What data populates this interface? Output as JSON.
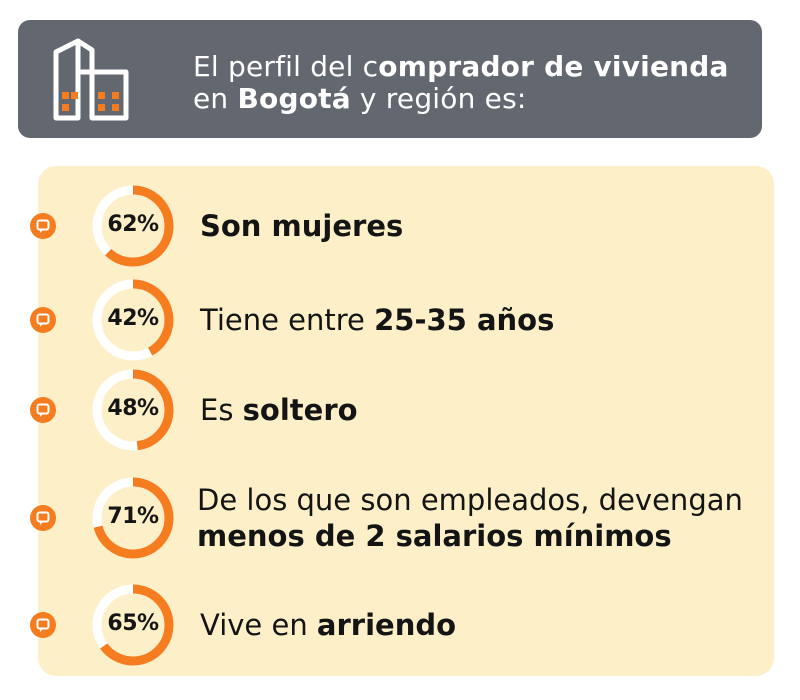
{
  "header": {
    "line1_regular": "El perfil del c",
    "line1_bold": "omprador de vivienda",
    "line2_regular_a": "en ",
    "line2_bold": "Bogotá",
    "line2_regular_b": " y región es:",
    "icon": "building-icon"
  },
  "colors": {
    "accent": "#f57c1f",
    "header_bg": "#636870",
    "panel_bg": "#fdf0c9",
    "ring_track": "#ffffff"
  },
  "items": [
    {
      "value": 0.62,
      "pct_label": "62%",
      "text_regular": "",
      "text_bold": "Son mujeres"
    },
    {
      "value": 0.42,
      "pct_label": "42%",
      "text_regular": "Tiene entre ",
      "text_bold": "25-35 años"
    },
    {
      "value": 0.48,
      "pct_label": "48%",
      "text_regular": "Es ",
      "text_bold": "soltero"
    },
    {
      "value": 0.71,
      "pct_label": "71%",
      "text_regular": "De los que son empleados, devengan",
      "text_bold": "menos de 2 salarios mínimos"
    },
    {
      "value": 0.65,
      "pct_label": "65%",
      "text_regular": "Vive en ",
      "text_bold": "arriendo"
    }
  ]
}
